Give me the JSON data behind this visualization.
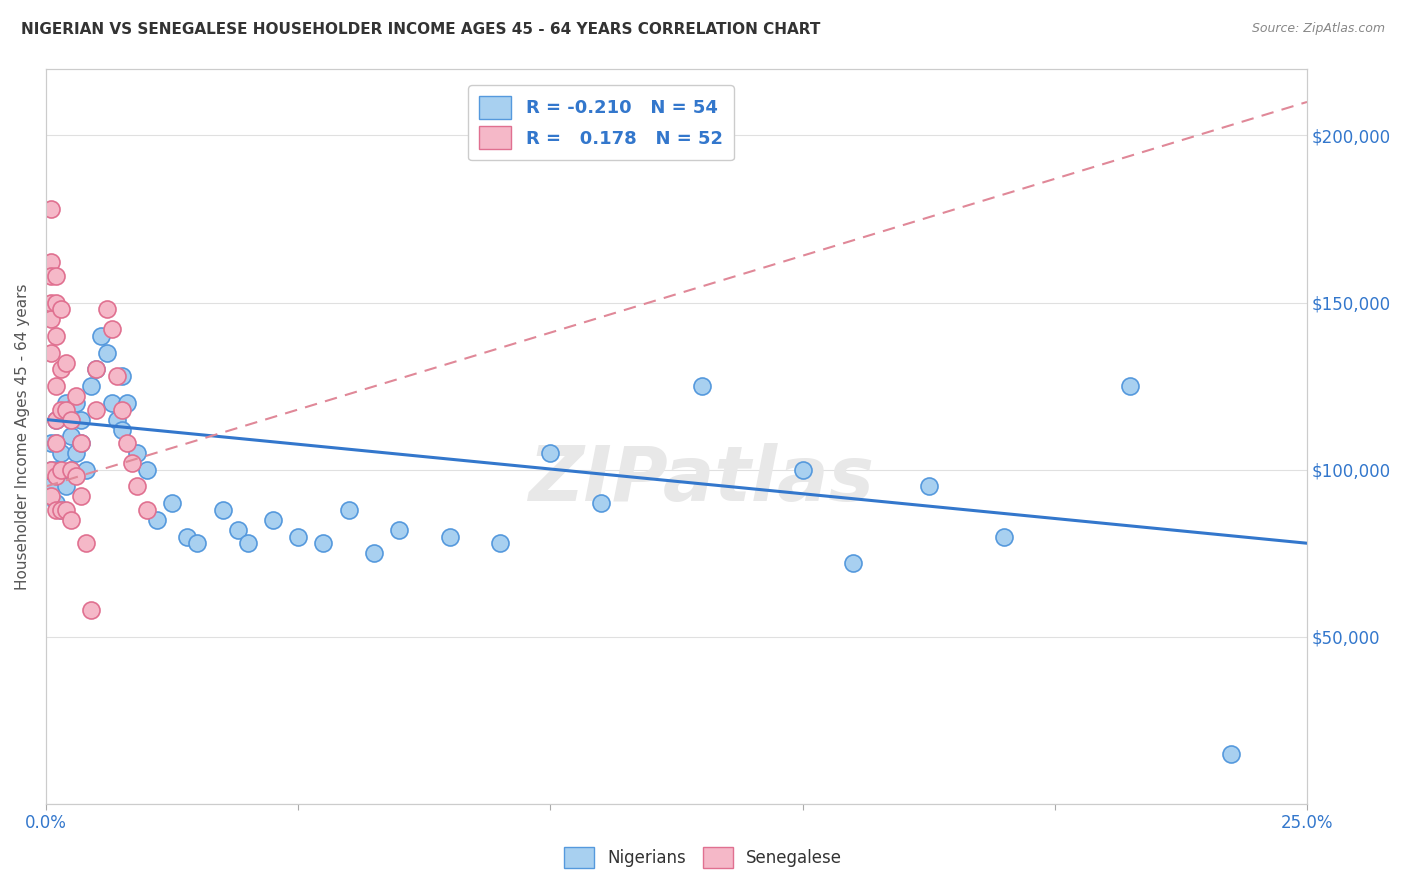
{
  "title": "NIGERIAN VS SENEGALESE HOUSEHOLDER INCOME AGES 45 - 64 YEARS CORRELATION CHART",
  "source": "Source: ZipAtlas.com",
  "ylabel": "Householder Income Ages 45 - 64 years",
  "x_min": 0.0,
  "x_max": 0.25,
  "y_min": 0,
  "y_max": 220000,
  "x_ticks": [
    0.0,
    0.05,
    0.1,
    0.15,
    0.2,
    0.25
  ],
  "x_tick_labels": [
    "0.0%",
    "",
    "",
    "",
    "",
    "25.0%"
  ],
  "y_ticks": [
    0,
    50000,
    100000,
    150000,
    200000
  ],
  "y_tick_labels": [
    "",
    "$50,000",
    "$100,000",
    "$150,000",
    "$200,000"
  ],
  "watermark": "ZIPatlas",
  "nigerian_color": "#a8d0f0",
  "nigerian_edge_color": "#5599dd",
  "senegalese_color": "#f5b8c8",
  "senegalese_edge_color": "#e07090",
  "nigerian_line_color": "#3377cc",
  "senegalese_line_color": "#e08898",
  "background_color": "#ffffff",
  "grid_color": "#e0e0e0",
  "nigerian_x": [
    0.001,
    0.001,
    0.001,
    0.002,
    0.002,
    0.002,
    0.002,
    0.003,
    0.003,
    0.003,
    0.004,
    0.004,
    0.005,
    0.005,
    0.006,
    0.006,
    0.007,
    0.007,
    0.008,
    0.009,
    0.01,
    0.011,
    0.012,
    0.013,
    0.014,
    0.015,
    0.015,
    0.016,
    0.018,
    0.02,
    0.022,
    0.025,
    0.028,
    0.03,
    0.035,
    0.038,
    0.04,
    0.045,
    0.05,
    0.055,
    0.06,
    0.065,
    0.07,
    0.08,
    0.09,
    0.1,
    0.11,
    0.13,
    0.15,
    0.16,
    0.175,
    0.19,
    0.215,
    0.235
  ],
  "nigerian_y": [
    108000,
    100000,
    95000,
    115000,
    108000,
    100000,
    90000,
    105000,
    98000,
    88000,
    120000,
    95000,
    110000,
    100000,
    120000,
    105000,
    115000,
    108000,
    100000,
    125000,
    130000,
    140000,
    135000,
    120000,
    115000,
    128000,
    112000,
    120000,
    105000,
    100000,
    85000,
    90000,
    80000,
    78000,
    88000,
    82000,
    78000,
    85000,
    80000,
    78000,
    88000,
    75000,
    82000,
    80000,
    78000,
    105000,
    90000,
    125000,
    100000,
    72000,
    95000,
    80000,
    125000,
    15000
  ],
  "senegalese_x": [
    0.001,
    0.001,
    0.001,
    0.001,
    0.001,
    0.001,
    0.001,
    0.001,
    0.002,
    0.002,
    0.002,
    0.002,
    0.002,
    0.002,
    0.002,
    0.002,
    0.003,
    0.003,
    0.003,
    0.003,
    0.003,
    0.004,
    0.004,
    0.004,
    0.005,
    0.005,
    0.005,
    0.006,
    0.006,
    0.007,
    0.007,
    0.008,
    0.009,
    0.01,
    0.01,
    0.012,
    0.013,
    0.014,
    0.015,
    0.016,
    0.017,
    0.018,
    0.02
  ],
  "senegalese_y": [
    178000,
    162000,
    158000,
    150000,
    145000,
    135000,
    100000,
    92000,
    158000,
    150000,
    140000,
    125000,
    115000,
    108000,
    98000,
    88000,
    148000,
    130000,
    118000,
    100000,
    88000,
    132000,
    118000,
    88000,
    115000,
    100000,
    85000,
    122000,
    98000,
    108000,
    92000,
    78000,
    58000,
    130000,
    118000,
    148000,
    142000,
    128000,
    118000,
    108000,
    102000,
    95000,
    88000
  ],
  "nig_line_x": [
    0.0,
    0.25
  ],
  "nig_line_y": [
    115000,
    78000
  ],
  "sen_line_x": [
    0.0,
    0.25
  ],
  "sen_line_y": [
    95000,
    210000
  ]
}
